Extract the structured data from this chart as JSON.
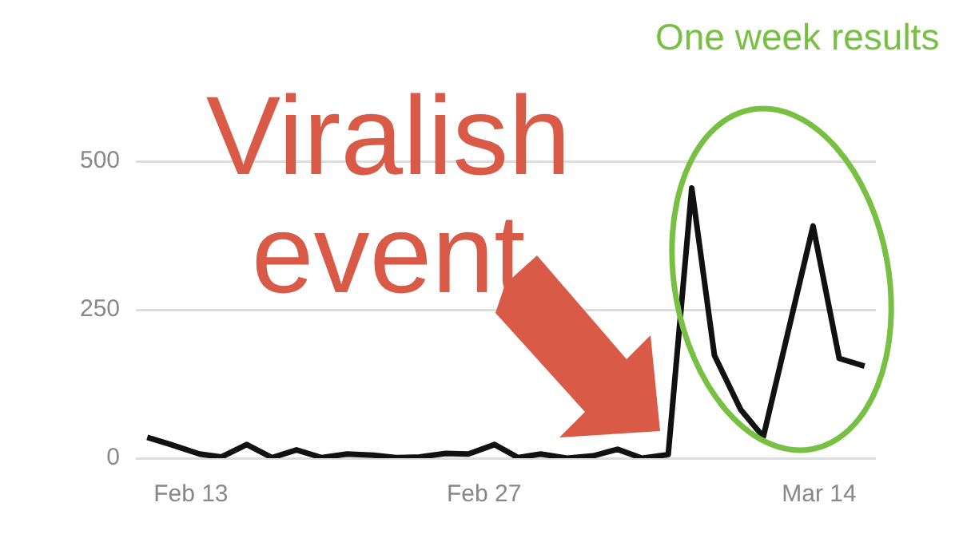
{
  "chart_data": {
    "type": "line",
    "x": [
      "--02-10T22:00",
      "--02-12T01:00",
      "--02-13T10:00",
      "--02-14T11:00",
      "--02-15T16:00",
      "--02-16T21:00",
      "--02-18T01:00",
      "--02-19T06:00",
      "--02-20T11:00",
      "--02-21T17:00",
      "--02-22T19:00",
      "--02-23T22:00",
      "--02-25T04:00",
      "--02-26T06:00",
      "--02-27T12:00",
      "--02-28T15:00",
      "--02-29T17:00",
      "--03-01T23:00",
      "--03-03T05:00",
      "--03-04T09:00",
      "--03-05T13:00",
      "--03-06T19:00",
      "--03-07T22:00",
      "--03-09T00:00",
      "--03-10T06:00",
      "--03-11T08:00",
      "--03-13T17:00",
      "--03-14T23:00",
      "--03-16T04:00"
    ],
    "series": [
      {
        "color": "#111111",
        "values": [
          35,
          23,
          7,
          2,
          23,
          1,
          14,
          1,
          7,
          5,
          1,
          2,
          8,
          7,
          23,
          1,
          7,
          0,
          4,
          15,
          0,
          6,
          455,
          173,
          82,
          36,
          391,
          168,
          155
        ]
      }
    ],
    "xlim": [
      "--02-10T09:00",
      "--03-16T17:00"
    ],
    "xticks": [
      {
        "value": "--02-13",
        "label": "Feb 13"
      },
      {
        "value": "--02-27",
        "label": "Feb 27"
      },
      {
        "value": "--03-14",
        "label": "Mar 14"
      }
    ],
    "ylim": [
      0,
      500
    ],
    "yticks": [
      0,
      250,
      500
    ],
    "grid": "y",
    "legend": false,
    "marker": "none",
    "line_style": "solid",
    "annotations": [
      "Viralish event",
      "One week results"
    ]
  }
}
